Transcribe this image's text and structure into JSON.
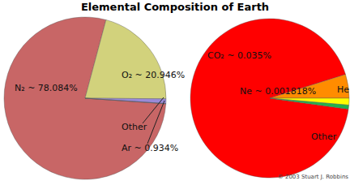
{
  "chart_data": [
    {
      "type": "pie",
      "title": "Elemental Composition of Earth",
      "categories": [
        "N₂",
        "O₂",
        "Ar",
        "Other"
      ],
      "values": [
        78.084,
        20.946,
        0.934,
        0.036
      ],
      "value_labels": [
        "~ 78.084%",
        "~ 20.946%",
        "~ 0.934%",
        null
      ],
      "colors": [
        "#c86666",
        "#d2d27c",
        "#9a8ad8",
        "#4a6ad0"
      ],
      "data_labels": true
    },
    {
      "type": "pie",
      "categories": [
        "CO₂",
        "Ne",
        "He",
        "Other"
      ],
      "values": [
        0.035,
        0.001818,
        0.000524,
        0.0003
      ],
      "value_labels": [
        "~ 0.035%",
        "~ 0.001818%",
        null,
        null
      ],
      "colors": [
        "#ff0000",
        "#ff8c00",
        "#ffff00",
        "#22b24c"
      ],
      "data_labels": true,
      "annotations": [
        "© 2003 Stuart J. Robbins"
      ]
    }
  ]
}
